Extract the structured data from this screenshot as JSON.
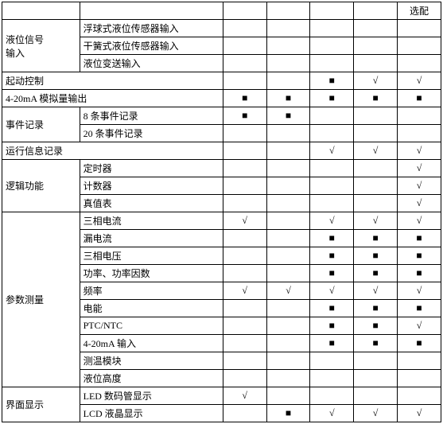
{
  "header": {
    "optional_label": "选配"
  },
  "symbols": {
    "square": "■",
    "check": "√"
  },
  "categories": {
    "liquid_signal": {
      "label": "液位信号\n输入",
      "items": [
        "浮球式液位传感器输入",
        "干簧式液位传感器输入",
        "液位变送输入"
      ]
    },
    "start_control": {
      "label": "起动控制",
      "marks": [
        "",
        "",
        "■",
        "√",
        "√"
      ]
    },
    "analog_output": {
      "label": "4-20mA 模拟量输出",
      "marks": [
        "■",
        "■",
        "■",
        "■",
        "■"
      ]
    },
    "event_record": {
      "label": "事件记录",
      "items": [
        {
          "label": "8 条事件记录",
          "marks": [
            "■",
            "■",
            "",
            "",
            ""
          ]
        },
        {
          "label": "20 条事件记录",
          "marks": [
            "",
            "",
            "",
            "",
            ""
          ]
        }
      ]
    },
    "run_info": {
      "label": "运行信息记录",
      "marks": [
        "",
        "",
        "√",
        "√",
        "√"
      ]
    },
    "logic": {
      "label": "逻辑功能",
      "items": [
        {
          "label": "定时器",
          "marks": [
            "",
            "",
            "",
            "",
            "√"
          ]
        },
        {
          "label": "计数器",
          "marks": [
            "",
            "",
            "",
            "",
            "√"
          ]
        },
        {
          "label": "真值表",
          "marks": [
            "",
            "",
            "",
            "",
            "√"
          ]
        }
      ]
    },
    "param_measure": {
      "label": "参数测量",
      "items": [
        {
          "label": "三相电流",
          "marks": [
            "√",
            "",
            "√",
            "√",
            "√"
          ]
        },
        {
          "label": "漏电流",
          "marks": [
            "",
            "",
            "■",
            "■",
            "■"
          ]
        },
        {
          "label": "三相电压",
          "marks": [
            "",
            "",
            "■",
            "■",
            "■"
          ]
        },
        {
          "label": "功率、功率因数",
          "marks": [
            "",
            "",
            "■",
            "■",
            "■"
          ]
        },
        {
          "label": "频率",
          "marks": [
            "√",
            "√",
            "√",
            "√",
            "√"
          ]
        },
        {
          "label": "电能",
          "marks": [
            "",
            "",
            "■",
            "■",
            "■"
          ]
        },
        {
          "label": "PTC/NTC",
          "marks": [
            "",
            "",
            "■",
            "■",
            "√"
          ]
        },
        {
          "label": "4-20mA 输入",
          "marks": [
            "",
            "",
            "■",
            "■",
            "■"
          ]
        },
        {
          "label": "测温模块",
          "marks": [
            "",
            "",
            "",
            "",
            ""
          ]
        },
        {
          "label": "液位高度",
          "marks": [
            "",
            "",
            "",
            "",
            ""
          ]
        }
      ]
    },
    "display": {
      "label": "界面显示",
      "items": [
        {
          "label": "LED 数码管显示",
          "marks": [
            "√",
            "",
            "",
            "",
            ""
          ]
        },
        {
          "label": "LCD 液晶显示",
          "marks": [
            "",
            "■",
            "√",
            "√",
            "√"
          ]
        }
      ]
    }
  }
}
